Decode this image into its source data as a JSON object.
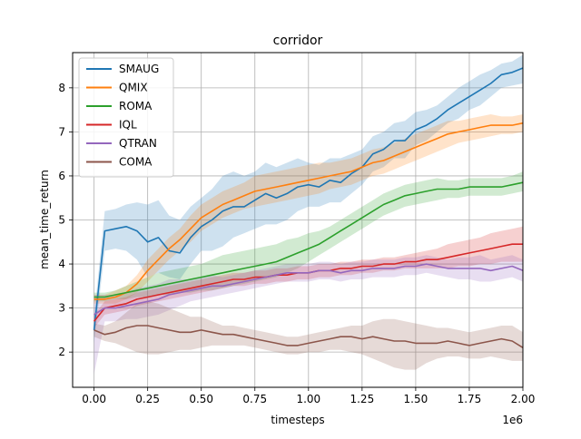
{
  "chart_data": {
    "type": "line",
    "title": "corridor",
    "xlabel": "timesteps",
    "ylabel": "mean_time_return",
    "x_offset_text": "1e6",
    "xlim": [
      -0.1,
      2.0
    ],
    "ylim": [
      1.2,
      8.8
    ],
    "x_ticks": [
      0.0,
      0.25,
      0.5,
      0.75,
      1.0,
      1.25,
      1.5,
      1.75,
      2.0
    ],
    "x_tick_labels": [
      "0.00",
      "0.25",
      "0.50",
      "0.75",
      "1.00",
      "1.25",
      "1.50",
      "1.75",
      "2.00"
    ],
    "y_ticks": [
      2,
      3,
      4,
      5,
      6,
      7,
      8
    ],
    "y_tick_labels": [
      "2",
      "3",
      "4",
      "5",
      "6",
      "7",
      "8"
    ],
    "grid": true,
    "legend_position": "top-left",
    "x": [
      0.0,
      0.05,
      0.1,
      0.15,
      0.2,
      0.25,
      0.3,
      0.35,
      0.4,
      0.45,
      0.5,
      0.55,
      0.6,
      0.65,
      0.7,
      0.75,
      0.8,
      0.85,
      0.9,
      0.95,
      1.0,
      1.05,
      1.1,
      1.15,
      1.2,
      1.25,
      1.3,
      1.35,
      1.4,
      1.45,
      1.5,
      1.55,
      1.6,
      1.65,
      1.7,
      1.75,
      1.8,
      1.85,
      1.9,
      1.95,
      2.0
    ],
    "series": [
      {
        "name": "SMAUG",
        "color": "#1f77b4",
        "values": [
          2.5,
          4.75,
          4.8,
          4.85,
          4.75,
          4.5,
          4.6,
          4.3,
          4.25,
          4.6,
          4.85,
          5.0,
          5.2,
          5.3,
          5.3,
          5.45,
          5.6,
          5.5,
          5.6,
          5.75,
          5.8,
          5.75,
          5.9,
          5.85,
          6.05,
          6.2,
          6.5,
          6.6,
          6.8,
          6.8,
          7.05,
          7.15,
          7.3,
          7.5,
          7.65,
          7.8,
          7.95,
          8.1,
          8.3,
          8.35,
          8.45
        ],
        "lower": [
          2.2,
          4.3,
          4.35,
          4.3,
          4.1,
          3.7,
          3.8,
          3.7,
          3.65,
          4.0,
          4.3,
          4.3,
          4.4,
          4.6,
          4.7,
          4.8,
          4.9,
          4.9,
          5.0,
          5.2,
          5.3,
          5.3,
          5.4,
          5.4,
          5.6,
          5.8,
          6.1,
          6.2,
          6.4,
          6.4,
          6.7,
          6.8,
          7.0,
          7.2,
          7.3,
          7.5,
          7.6,
          7.8,
          8.0,
          8.05,
          8.1
        ],
        "upper": [
          2.8,
          5.2,
          5.25,
          5.35,
          5.4,
          5.35,
          5.45,
          5.1,
          5.0,
          5.3,
          5.5,
          5.7,
          6.0,
          6.1,
          6.0,
          6.1,
          6.3,
          6.2,
          6.3,
          6.4,
          6.3,
          6.25,
          6.4,
          6.4,
          6.5,
          6.6,
          6.9,
          7.0,
          7.2,
          7.25,
          7.45,
          7.5,
          7.6,
          7.8,
          8.0,
          8.15,
          8.3,
          8.4,
          8.55,
          8.6,
          8.75
        ]
      },
      {
        "name": "QMIX",
        "color": "#ff7f0e",
        "values": [
          3.2,
          3.2,
          3.25,
          3.35,
          3.55,
          3.85,
          4.1,
          4.35,
          4.55,
          4.8,
          5.05,
          5.2,
          5.35,
          5.45,
          5.55,
          5.65,
          5.7,
          5.75,
          5.8,
          5.85,
          5.9,
          5.95,
          6.0,
          6.05,
          6.1,
          6.2,
          6.3,
          6.35,
          6.45,
          6.55,
          6.65,
          6.75,
          6.85,
          6.95,
          7.0,
          7.05,
          7.1,
          7.15,
          7.15,
          7.15,
          7.2
        ],
        "lower": [
          3.1,
          3.1,
          3.1,
          3.2,
          3.35,
          3.6,
          3.85,
          4.1,
          4.3,
          4.5,
          4.75,
          4.9,
          5.05,
          5.15,
          5.25,
          5.3,
          5.35,
          5.4,
          5.45,
          5.5,
          5.55,
          5.6,
          5.7,
          5.75,
          5.8,
          5.9,
          6.0,
          6.05,
          6.15,
          6.25,
          6.35,
          6.45,
          6.55,
          6.65,
          6.75,
          6.8,
          6.85,
          6.9,
          6.95,
          6.95,
          7.0
        ],
        "upper": [
          3.3,
          3.3,
          3.4,
          3.5,
          3.75,
          4.1,
          4.35,
          4.6,
          4.8,
          5.1,
          5.35,
          5.5,
          5.65,
          5.75,
          5.85,
          6.0,
          6.05,
          6.1,
          6.15,
          6.2,
          6.25,
          6.3,
          6.3,
          6.35,
          6.4,
          6.5,
          6.6,
          6.65,
          6.75,
          6.85,
          6.95,
          7.05,
          7.15,
          7.25,
          7.25,
          7.3,
          7.35,
          7.4,
          7.35,
          7.35,
          7.4
        ]
      },
      {
        "name": "ROMA",
        "color": "#2ca02c",
        "values": [
          3.25,
          3.25,
          3.3,
          3.35,
          3.4,
          3.45,
          3.5,
          3.55,
          3.6,
          3.65,
          3.7,
          3.75,
          3.8,
          3.85,
          3.9,
          3.95,
          4.0,
          4.05,
          4.15,
          4.25,
          4.35,
          4.45,
          4.6,
          4.75,
          4.9,
          5.05,
          5.2,
          5.35,
          5.45,
          5.55,
          5.6,
          5.65,
          5.7,
          5.7,
          5.7,
          5.75,
          5.75,
          5.75,
          5.75,
          5.8,
          5.85
        ],
        "lower": [
          3.15,
          3.15,
          3.2,
          3.2,
          3.25,
          3.25,
          3.3,
          3.3,
          3.35,
          3.35,
          3.4,
          3.4,
          3.45,
          3.5,
          3.55,
          3.6,
          3.65,
          3.7,
          3.8,
          3.9,
          4.05,
          4.2,
          4.35,
          4.5,
          4.65,
          4.8,
          4.95,
          5.1,
          5.2,
          5.3,
          5.35,
          5.4,
          5.45,
          5.5,
          5.5,
          5.55,
          5.55,
          5.55,
          5.55,
          5.6,
          5.65
        ],
        "upper": [
          3.35,
          3.35,
          3.4,
          3.5,
          3.6,
          3.7,
          3.8,
          3.85,
          3.9,
          3.95,
          4.0,
          4.1,
          4.2,
          4.25,
          4.3,
          4.35,
          4.4,
          4.45,
          4.55,
          4.6,
          4.7,
          4.75,
          4.85,
          5.0,
          5.15,
          5.3,
          5.45,
          5.6,
          5.7,
          5.8,
          5.85,
          5.9,
          5.95,
          5.9,
          5.9,
          5.95,
          5.95,
          5.95,
          5.95,
          6.0,
          6.1
        ]
      },
      {
        "name": "IQL",
        "color": "#d62728",
        "values": [
          2.7,
          3.0,
          3.05,
          3.1,
          3.2,
          3.25,
          3.3,
          3.35,
          3.4,
          3.45,
          3.5,
          3.55,
          3.6,
          3.65,
          3.65,
          3.7,
          3.7,
          3.75,
          3.75,
          3.8,
          3.8,
          3.85,
          3.85,
          3.9,
          3.9,
          3.95,
          3.95,
          4.0,
          4.0,
          4.05,
          4.05,
          4.1,
          4.1,
          4.15,
          4.2,
          4.25,
          4.3,
          4.35,
          4.4,
          4.45,
          4.45
        ],
        "lower": [
          2.55,
          2.85,
          2.9,
          2.95,
          3.05,
          3.1,
          3.15,
          3.2,
          3.25,
          3.3,
          3.35,
          3.4,
          3.45,
          3.5,
          3.5,
          3.55,
          3.55,
          3.6,
          3.6,
          3.65,
          3.65,
          3.7,
          3.7,
          3.75,
          3.75,
          3.8,
          3.8,
          3.85,
          3.85,
          3.9,
          3.9,
          3.9,
          3.9,
          3.9,
          3.95,
          3.95,
          4.0,
          4.0,
          4.05,
          4.05,
          4.05
        ],
        "upper": [
          2.85,
          3.15,
          3.2,
          3.25,
          3.35,
          3.4,
          3.45,
          3.5,
          3.55,
          3.6,
          3.65,
          3.7,
          3.75,
          3.8,
          3.8,
          3.85,
          3.85,
          3.9,
          3.9,
          3.95,
          3.95,
          4.0,
          4.0,
          4.05,
          4.05,
          4.1,
          4.1,
          4.15,
          4.15,
          4.2,
          4.25,
          4.3,
          4.35,
          4.45,
          4.5,
          4.55,
          4.6,
          4.7,
          4.75,
          4.8,
          4.85
        ]
      },
      {
        "name": "QTRAN",
        "color": "#9467bd",
        "values": [
          2.85,
          3.0,
          3.0,
          3.05,
          3.1,
          3.15,
          3.2,
          3.3,
          3.35,
          3.4,
          3.45,
          3.5,
          3.5,
          3.55,
          3.6,
          3.65,
          3.7,
          3.75,
          3.8,
          3.8,
          3.8,
          3.85,
          3.85,
          3.8,
          3.85,
          3.85,
          3.9,
          3.9,
          3.9,
          3.95,
          3.95,
          4.0,
          3.95,
          3.9,
          3.9,
          3.9,
          3.9,
          3.85,
          3.9,
          3.95,
          3.85
        ],
        "lower": [
          1.5,
          2.7,
          2.7,
          2.75,
          2.75,
          2.8,
          2.85,
          2.95,
          3.05,
          3.15,
          3.2,
          3.25,
          3.3,
          3.35,
          3.4,
          3.45,
          3.5,
          3.55,
          3.6,
          3.6,
          3.6,
          3.65,
          3.65,
          3.6,
          3.65,
          3.65,
          3.7,
          3.7,
          3.7,
          3.75,
          3.75,
          3.8,
          3.75,
          3.7,
          3.65,
          3.65,
          3.6,
          3.6,
          3.65,
          3.7,
          3.6
        ],
        "upper": [
          3.3,
          3.3,
          3.3,
          3.35,
          3.45,
          3.5,
          3.55,
          3.65,
          3.65,
          3.65,
          3.7,
          3.75,
          3.7,
          3.75,
          3.8,
          3.85,
          3.9,
          3.95,
          4.0,
          4.0,
          4.0,
          4.05,
          4.05,
          4.0,
          4.05,
          4.05,
          4.1,
          4.1,
          4.1,
          4.15,
          4.15,
          4.2,
          4.15,
          4.1,
          4.15,
          4.15,
          4.2,
          4.1,
          4.15,
          4.2,
          4.1
        ]
      },
      {
        "name": "COMA",
        "color": "#8c564b",
        "values": [
          2.5,
          2.4,
          2.45,
          2.55,
          2.6,
          2.6,
          2.55,
          2.5,
          2.45,
          2.45,
          2.5,
          2.45,
          2.4,
          2.4,
          2.35,
          2.3,
          2.25,
          2.2,
          2.15,
          2.15,
          2.2,
          2.25,
          2.3,
          2.35,
          2.35,
          2.3,
          2.35,
          2.3,
          2.25,
          2.25,
          2.2,
          2.2,
          2.2,
          2.25,
          2.2,
          2.15,
          2.2,
          2.25,
          2.3,
          2.25,
          2.1
        ],
        "lower": [
          2.35,
          2.25,
          2.2,
          2.1,
          2.0,
          1.95,
          1.95,
          2.0,
          2.05,
          2.05,
          2.1,
          2.15,
          2.15,
          2.15,
          2.15,
          2.1,
          2.05,
          2.0,
          1.95,
          1.95,
          2.0,
          2.0,
          2.05,
          2.05,
          2.0,
          1.95,
          1.85,
          1.75,
          1.65,
          1.6,
          1.6,
          1.75,
          1.85,
          1.9,
          1.9,
          1.85,
          1.85,
          1.9,
          1.85,
          1.8,
          1.8
        ],
        "upper": [
          2.65,
          2.6,
          2.7,
          2.9,
          3.1,
          3.15,
          3.1,
          3.0,
          2.9,
          2.8,
          2.8,
          2.7,
          2.6,
          2.6,
          2.55,
          2.5,
          2.45,
          2.4,
          2.35,
          2.35,
          2.4,
          2.45,
          2.5,
          2.55,
          2.6,
          2.6,
          2.7,
          2.75,
          2.75,
          2.7,
          2.65,
          2.6,
          2.55,
          2.55,
          2.5,
          2.45,
          2.5,
          2.55,
          2.6,
          2.6,
          2.45
        ]
      }
    ]
  }
}
